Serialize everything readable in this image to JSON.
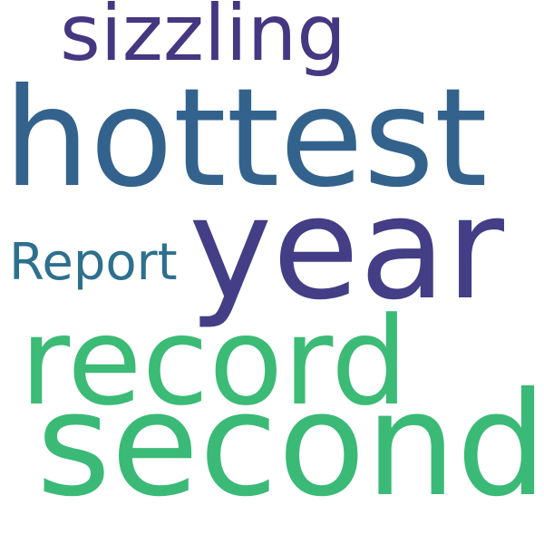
{
  "words": [
    {
      "text": "sizzling",
      "color": "#453781"
    },
    {
      "text": "hottest",
      "color": "#33638d"
    },
    {
      "text": "Report",
      "color": "#2d708e"
    },
    {
      "text": "year",
      "color": "#433e85"
    },
    {
      "text": "record",
      "color": "#3bbb75"
    },
    {
      "text": "second",
      "color": "#3aba76"
    }
  ]
}
